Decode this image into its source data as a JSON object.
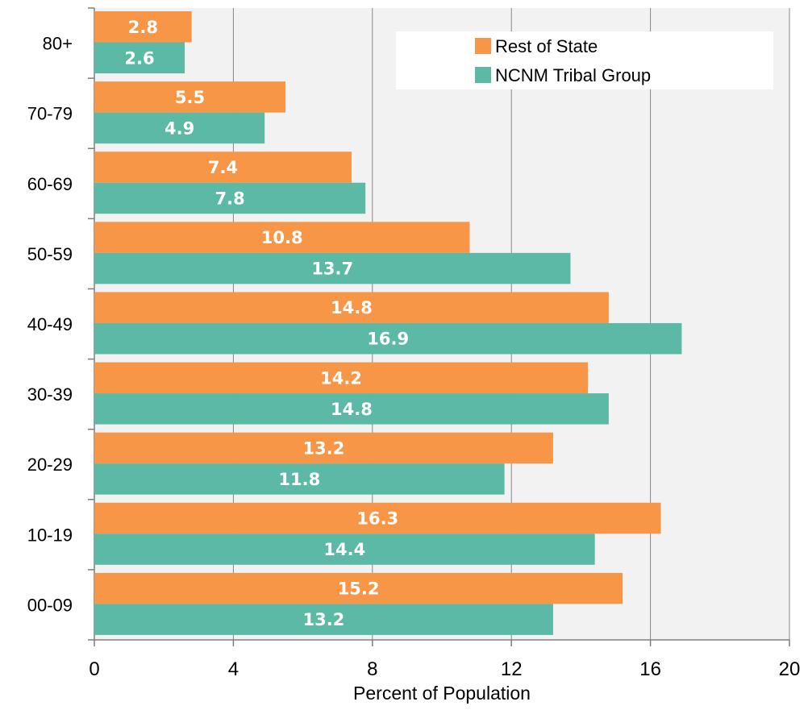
{
  "chart_data": {
    "type": "bar",
    "orientation": "horizontal",
    "categories": [
      "80+",
      "70-79",
      "60-69",
      "50-59",
      "40-49",
      "30-39",
      "20-29",
      "10-19",
      "00-09"
    ],
    "series": [
      {
        "name": "Rest of State",
        "color": "#F79646",
        "values": [
          2.8,
          5.5,
          7.4,
          10.8,
          14.8,
          14.2,
          13.2,
          16.3,
          15.2
        ]
      },
      {
        "name": "NCNM Tribal Group",
        "color": "#5BB9A6",
        "values": [
          2.6,
          4.9,
          7.8,
          13.7,
          16.9,
          14.8,
          11.8,
          14.4,
          13.2
        ]
      }
    ],
    "xlabel": "Percent of Population",
    "ylabel": "",
    "xlim": [
      0,
      20
    ],
    "xticks": [
      "0",
      "4",
      "8",
      "12",
      "16",
      "20"
    ],
    "grid": "vertical",
    "legend_position": "top-right",
    "plot_background": "#F2F2F2"
  }
}
